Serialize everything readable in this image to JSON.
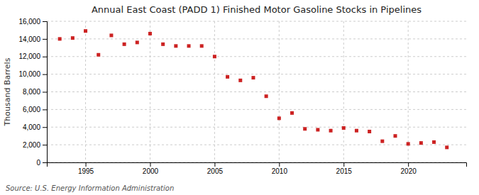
{
  "chart_data": {
    "type": "scatter",
    "title": "Annual East Coast (PADD 1) Finished Motor Gasoline Stocks in Pipelines",
    "ylabel": "Thousand Barrels",
    "source": "Source: U.S. Energy Information Administration",
    "x": [
      1993,
      1994,
      1995,
      1996,
      1997,
      1998,
      1999,
      2000,
      2001,
      2002,
      2003,
      2004,
      2005,
      2006,
      2007,
      2008,
      2009,
      2010,
      2011,
      2012,
      2013,
      2014,
      2015,
      2016,
      2017,
      2018,
      2019,
      2020,
      2021,
      2022,
      2023
    ],
    "values": [
      14000,
      14100,
      14900,
      12200,
      14400,
      13400,
      13600,
      14600,
      13400,
      13200,
      13200,
      13200,
      12000,
      9700,
      9300,
      9600,
      7500,
      5000,
      5600,
      3800,
      3700,
      3600,
      3900,
      3600,
      3500,
      2400,
      3000,
      2100,
      2200,
      2300,
      1700
    ],
    "color": "#cc2222",
    "marker": "square",
    "xlim": [
      1992.0,
      2024.5
    ],
    "xticks": [
      1995,
      2000,
      2005,
      2010,
      2015,
      2020
    ],
    "ylim": [
      0,
      16000
    ],
    "yticks": [
      0,
      {
        "value": 2000,
        "label": "2,000"
      },
      {
        "value": 4000,
        "label": "4,000"
      },
      {
        "value": 6000,
        "label": "6,000"
      },
      {
        "value": 8000,
        "label": "8,000"
      },
      {
        "value": 10000,
        "label": "10,000"
      },
      {
        "value": 12000,
        "label": "12,000"
      },
      {
        "value": 14000,
        "label": "14,000"
      },
      {
        "value": 16000,
        "label": "16,000"
      }
    ],
    "grid": true
  }
}
